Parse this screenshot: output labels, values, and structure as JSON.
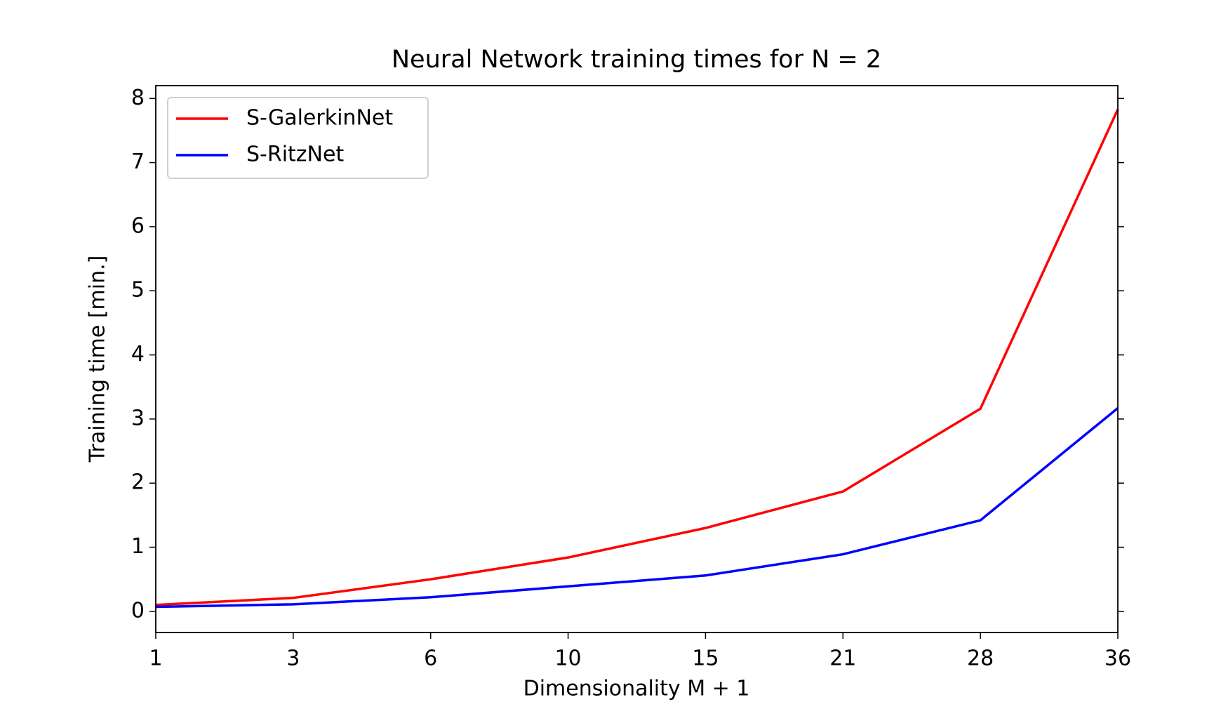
{
  "chart_data": {
    "type": "line",
    "title": "Neural Network training times for N = 2",
    "x_label": "Dimensionality M + 1",
    "y_label": "Training time [min.]",
    "categories": [
      "1",
      "3",
      "6",
      "10",
      "15",
      "21",
      "28",
      "36"
    ],
    "series": [
      {
        "name": "S-GalerkinNet",
        "color": "#ff0000",
        "values": [
          0.1,
          0.21,
          0.5,
          0.84,
          1.3,
          1.87,
          3.16,
          7.83
        ]
      },
      {
        "name": "S-RitzNet",
        "color": "#0000ff",
        "values": [
          0.07,
          0.11,
          0.22,
          0.39,
          0.56,
          0.89,
          1.42,
          3.17
        ]
      }
    ],
    "ylim": [
      -0.33,
      8.2
    ],
    "yticks": [
      0,
      1,
      2,
      3,
      4,
      5,
      6,
      7,
      8
    ],
    "legend": "upper left"
  }
}
